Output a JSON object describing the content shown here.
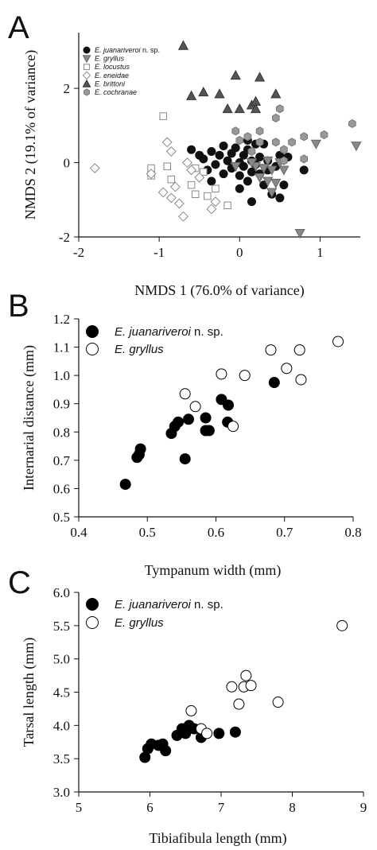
{
  "chart_data": [
    {
      "panel": "A",
      "type": "scatter",
      "xlabel": "NMDS 1 (76.0% of variance)",
      "ylabel": "NMDS 2 (19.1% of variance)",
      "xlim": [
        -2,
        1.5
      ],
      "ylim": [
        -2,
        3.5
      ],
      "xticks": [
        -2,
        -1,
        0,
        1
      ],
      "yticks": [
        -2,
        0,
        2
      ],
      "legend_position": "top-left",
      "series": [
        {
          "name": "E. juanariveroi",
          "name_suffix": " n. sp.",
          "marker": "circle",
          "fill": "#111111",
          "stroke": "#111111",
          "points": [
            [
              -0.6,
              0.35
            ],
            [
              -0.5,
              0.2
            ],
            [
              -0.45,
              0.1
            ],
            [
              -0.4,
              -0.2
            ],
            [
              -0.35,
              0.3
            ],
            [
              -0.3,
              -0.05
            ],
            [
              -0.25,
              0.2
            ],
            [
              -0.2,
              0.45
            ],
            [
              -0.2,
              -0.3
            ],
            [
              -0.15,
              0.05
            ],
            [
              -0.1,
              0.25
            ],
            [
              -0.1,
              -0.15
            ],
            [
              -0.05,
              0.4
            ],
            [
              0.0,
              0.0
            ],
            [
              0.0,
              -0.35
            ],
            [
              0.05,
              0.2
            ],
            [
              0.05,
              -0.1
            ],
            [
              0.1,
              0.35
            ],
            [
              0.1,
              -0.5
            ],
            [
              0.15,
              0.05
            ],
            [
              0.15,
              -0.25
            ],
            [
              0.2,
              0.5
            ],
            [
              0.2,
              -0.05
            ],
            [
              0.25,
              -0.3
            ],
            [
              0.25,
              0.15
            ],
            [
              0.3,
              -0.6
            ],
            [
              0.35,
              0.05
            ],
            [
              0.35,
              -0.2
            ],
            [
              0.4,
              -0.85
            ],
            [
              0.45,
              -0.1
            ],
            [
              0.5,
              0.2
            ],
            [
              0.55,
              -0.6
            ],
            [
              0.6,
              0.15
            ],
            [
              0.8,
              -0.2
            ],
            [
              0.15,
              -1.05
            ],
            [
              0.0,
              -0.7
            ],
            [
              0.5,
              -0.95
            ],
            [
              -0.35,
              -0.5
            ],
            [
              0.1,
              0.6
            ],
            [
              0.3,
              0.5
            ]
          ]
        },
        {
          "name": "E. gryllus",
          "marker": "triangle-down",
          "fill": "#888888",
          "stroke": "#666666",
          "points": [
            [
              0.75,
              -1.9
            ],
            [
              0.95,
              0.5
            ],
            [
              1.45,
              0.45
            ],
            [
              0.4,
              -0.2
            ],
            [
              0.35,
              0.05
            ],
            [
              0.25,
              -0.4
            ],
            [
              0.45,
              -0.55
            ],
            [
              0.3,
              -0.15
            ],
            [
              0.4,
              -0.8
            ],
            [
              0.55,
              -0.2
            ],
            [
              0.2,
              -0.1
            ],
            [
              0.15,
              0.0
            ],
            [
              0.5,
              0.0
            ],
            [
              0.35,
              -0.5
            ],
            [
              -0.05,
              -0.1
            ]
          ]
        },
        {
          "name": "E. locustus",
          "marker": "square",
          "fill": "#ffffff",
          "stroke": "#888888",
          "points": [
            [
              -0.95,
              1.25
            ],
            [
              -1.1,
              -0.15
            ],
            [
              -1.1,
              -0.35
            ],
            [
              -0.9,
              -0.1
            ],
            [
              -0.85,
              -0.45
            ],
            [
              -0.6,
              -0.6
            ],
            [
              -0.55,
              -0.85
            ],
            [
              -0.45,
              -0.25
            ],
            [
              -0.4,
              -0.9
            ],
            [
              -0.3,
              -0.7
            ],
            [
              -0.15,
              -1.15
            ],
            [
              -0.55,
              -0.15
            ]
          ]
        },
        {
          "name": "E. eneidae",
          "marker": "diamond",
          "fill": "#ffffff",
          "stroke": "#888888",
          "points": [
            [
              -1.8,
              -0.15
            ],
            [
              -1.1,
              -0.3
            ],
            [
              -0.95,
              -0.8
            ],
            [
              -0.85,
              -0.95
            ],
            [
              -0.9,
              0.55
            ],
            [
              -0.85,
              0.3
            ],
            [
              -0.8,
              -0.65
            ],
            [
              -0.75,
              -1.1
            ],
            [
              -0.7,
              -1.45
            ],
            [
              -0.65,
              0.0
            ],
            [
              -0.6,
              -0.2
            ],
            [
              -0.5,
              -0.4
            ],
            [
              -0.35,
              -1.25
            ],
            [
              -0.3,
              -1.05
            ]
          ]
        },
        {
          "name": "E. brittoni",
          "marker": "triangle-up",
          "fill": "#555555",
          "stroke": "#333333",
          "points": [
            [
              -0.7,
              3.15
            ],
            [
              -0.45,
              1.9
            ],
            [
              -0.25,
              1.85
            ],
            [
              -0.05,
              2.35
            ],
            [
              -0.15,
              1.45
            ],
            [
              0.0,
              1.45
            ],
            [
              0.15,
              1.55
            ],
            [
              0.2,
              1.65
            ],
            [
              0.2,
              1.45
            ],
            [
              0.25,
              2.3
            ],
            [
              0.45,
              1.85
            ],
            [
              -0.6,
              1.8
            ]
          ]
        },
        {
          "name": "E. cochranae",
          "marker": "hexagon",
          "fill": "#999999",
          "stroke": "#777777",
          "points": [
            [
              0.45,
              1.2
            ],
            [
              0.5,
              1.45
            ],
            [
              0.45,
              0.55
            ],
            [
              0.55,
              0.35
            ],
            [
              0.65,
              0.55
            ],
            [
              0.8,
              0.7
            ],
            [
              0.8,
              0.1
            ],
            [
              1.05,
              0.75
            ],
            [
              1.4,
              1.05
            ],
            [
              0.25,
              0.85
            ],
            [
              0.1,
              0.7
            ],
            [
              0.0,
              0.6
            ],
            [
              -0.05,
              0.85
            ],
            [
              0.25,
              0.55
            ],
            [
              0.15,
              0.3
            ],
            [
              0.55,
              0.05
            ]
          ]
        }
      ]
    },
    {
      "panel": "B",
      "type": "scatter",
      "xlabel": "Tympanum width (mm)",
      "ylabel": "Internarial distance (mm)",
      "xlim": [
        0.4,
        0.8
      ],
      "ylim": [
        0.5,
        1.2
      ],
      "xticks": [
        0.4,
        0.5,
        0.6,
        0.7,
        0.8
      ],
      "yticks": [
        0.5,
        0.6,
        0.7,
        0.8,
        0.9,
        1.0,
        1.1,
        1.2
      ],
      "legend_position": "top-left",
      "series": [
        {
          "name": "E. juanariveroi",
          "name_suffix": " n. sp.",
          "marker": "circle",
          "fill": "#000000",
          "stroke": "#000000",
          "points": [
            [
              0.468,
              0.615
            ],
            [
              0.485,
              0.71
            ],
            [
              0.488,
              0.72
            ],
            [
              0.49,
              0.74
            ],
            [
              0.535,
              0.795
            ],
            [
              0.54,
              0.82
            ],
            [
              0.545,
              0.835
            ],
            [
              0.555,
              0.705
            ],
            [
              0.56,
              0.845
            ],
            [
              0.585,
              0.85
            ],
            [
              0.585,
              0.805
            ],
            [
              0.59,
              0.805
            ],
            [
              0.608,
              0.915
            ],
            [
              0.617,
              0.835
            ],
            [
              0.618,
              0.895
            ],
            [
              0.685,
              0.975
            ]
          ]
        },
        {
          "name": "E. gryllus",
          "marker": "circle",
          "fill": "#ffffff",
          "stroke": "#000000",
          "points": [
            [
              0.555,
              0.935
            ],
            [
              0.57,
              0.89
            ],
            [
              0.608,
              1.005
            ],
            [
              0.625,
              0.82
            ],
            [
              0.642,
              1.0
            ],
            [
              0.68,
              1.09
            ],
            [
              0.703,
              1.025
            ],
            [
              0.722,
              1.09
            ],
            [
              0.724,
              0.985
            ],
            [
              0.778,
              1.12
            ]
          ]
        }
      ]
    },
    {
      "panel": "C",
      "type": "scatter",
      "xlabel": "Tibiafibula length (mm)",
      "ylabel": "Tarsal length (mm)",
      "xlim": [
        5,
        9
      ],
      "ylim": [
        3.0,
        6.0
      ],
      "xticks": [
        5,
        6,
        7,
        8,
        9
      ],
      "yticks": [
        3.0,
        3.5,
        4.0,
        4.5,
        5.0,
        5.5,
        6.0
      ],
      "legend_position": "top-left",
      "series": [
        {
          "name": "E. juanariveroi",
          "name_suffix": " n. sp.",
          "marker": "circle",
          "fill": "#000000",
          "stroke": "#000000",
          "points": [
            [
              5.93,
              3.52
            ],
            [
              5.97,
              3.65
            ],
            [
              6.02,
              3.72
            ],
            [
              6.12,
              3.7
            ],
            [
              6.18,
              3.72
            ],
            [
              6.22,
              3.62
            ],
            [
              6.38,
              3.85
            ],
            [
              6.45,
              3.95
            ],
            [
              6.5,
              3.88
            ],
            [
              6.55,
              4.0
            ],
            [
              6.62,
              3.95
            ],
            [
              6.72,
              3.82
            ],
            [
              6.97,
              3.88
            ],
            [
              7.2,
              3.9
            ]
          ]
        },
        {
          "name": "E. gryllus",
          "marker": "circle",
          "fill": "#ffffff",
          "stroke": "#000000",
          "points": [
            [
              6.58,
              4.22
            ],
            [
              6.72,
              3.95
            ],
            [
              6.8,
              3.88
            ],
            [
              7.15,
              4.58
            ],
            [
              7.25,
              4.32
            ],
            [
              7.32,
              4.58
            ],
            [
              7.35,
              4.75
            ],
            [
              7.42,
              4.6
            ],
            [
              7.8,
              4.35
            ],
            [
              8.7,
              5.5
            ]
          ]
        }
      ]
    }
  ]
}
